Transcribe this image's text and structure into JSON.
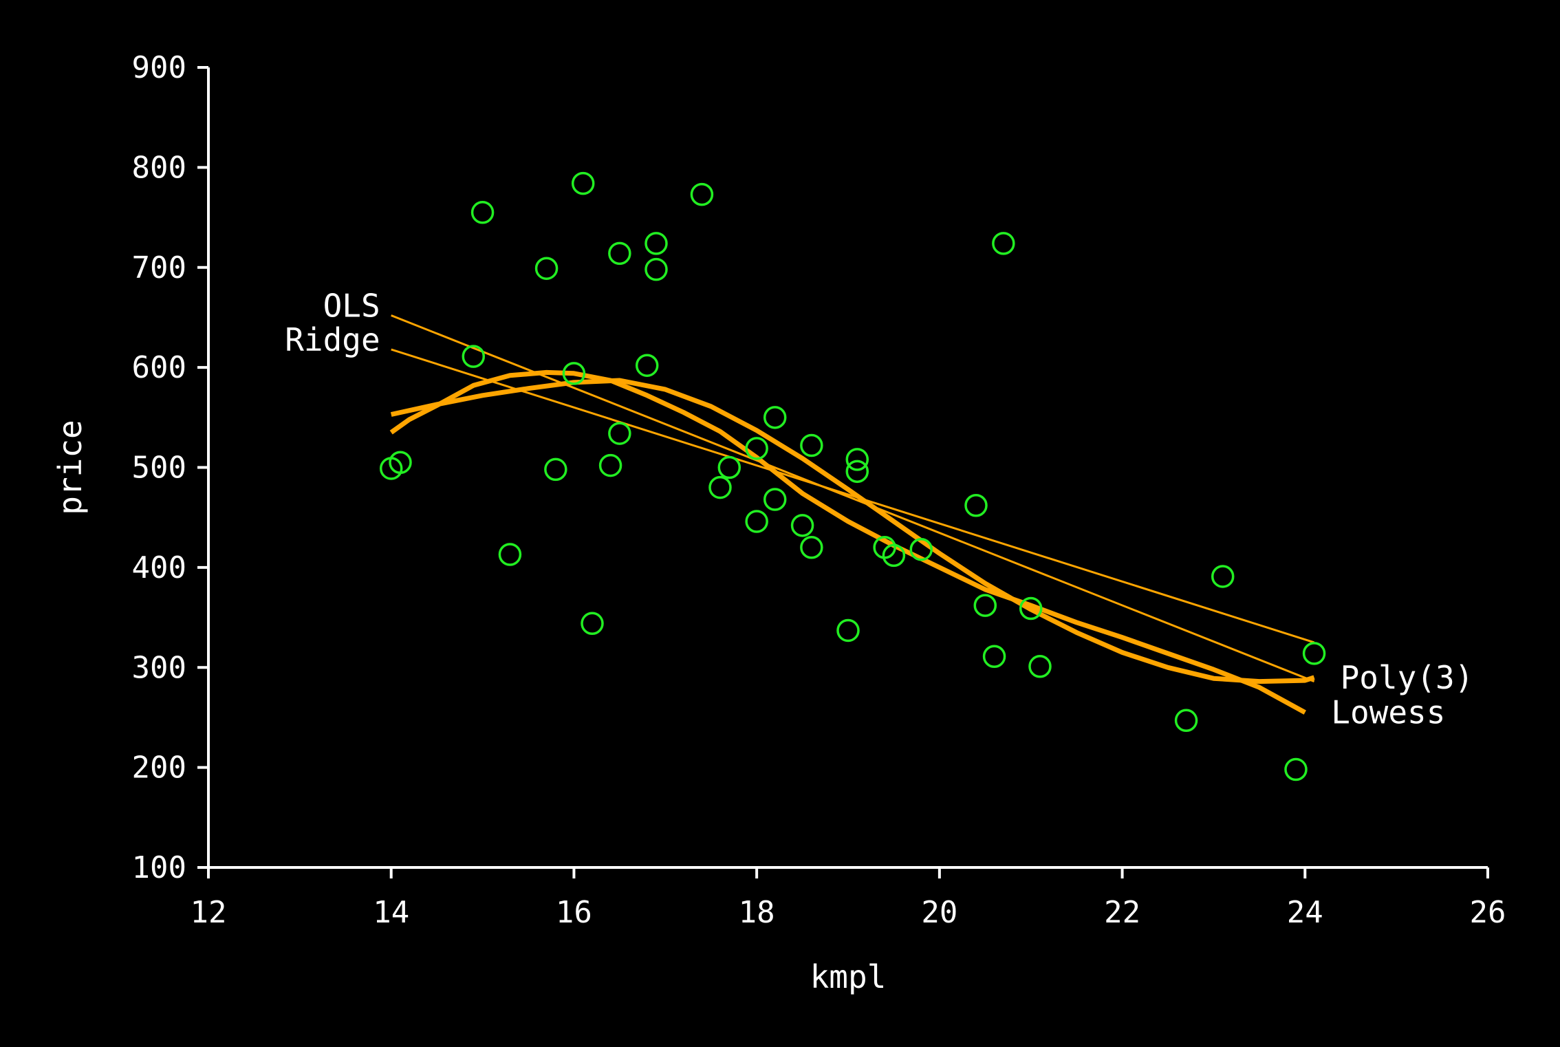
{
  "chart_data": {
    "type": "scatter",
    "title": "",
    "xlabel": "kmpl",
    "ylabel": "price",
    "xlim": [
      12,
      26
    ],
    "ylim": [
      100,
      900
    ],
    "xticks": [
      12,
      14,
      16,
      18,
      20,
      22,
      24,
      26
    ],
    "yticks": [
      100,
      200,
      300,
      400,
      500,
      600,
      700,
      800,
      900
    ],
    "grid": false,
    "colors": {
      "background": "#000000",
      "axes": "#ffffff",
      "points": "#22ee22",
      "fits": "#ffa500"
    },
    "points": [
      {
        "x": 14.0,
        "y": 499
      },
      {
        "x": 14.1,
        "y": 505
      },
      {
        "x": 14.9,
        "y": 611
      },
      {
        "x": 15.0,
        "y": 755
      },
      {
        "x": 15.3,
        "y": 413
      },
      {
        "x": 15.7,
        "y": 699
      },
      {
        "x": 15.8,
        "y": 498
      },
      {
        "x": 16.0,
        "y": 594
      },
      {
        "x": 16.1,
        "y": 784
      },
      {
        "x": 16.2,
        "y": 344
      },
      {
        "x": 16.4,
        "y": 502
      },
      {
        "x": 16.5,
        "y": 714
      },
      {
        "x": 16.5,
        "y": 534
      },
      {
        "x": 16.8,
        "y": 602
      },
      {
        "x": 16.9,
        "y": 724
      },
      {
        "x": 16.9,
        "y": 698
      },
      {
        "x": 17.4,
        "y": 773
      },
      {
        "x": 17.6,
        "y": 480
      },
      {
        "x": 17.7,
        "y": 500
      },
      {
        "x": 18.0,
        "y": 519
      },
      {
        "x": 18.0,
        "y": 446
      },
      {
        "x": 18.2,
        "y": 550
      },
      {
        "x": 18.2,
        "y": 468
      },
      {
        "x": 18.5,
        "y": 442
      },
      {
        "x": 18.6,
        "y": 522
      },
      {
        "x": 18.6,
        "y": 420
      },
      {
        "x": 19.0,
        "y": 337
      },
      {
        "x": 19.1,
        "y": 508
      },
      {
        "x": 19.1,
        "y": 496
      },
      {
        "x": 19.4,
        "y": 420
      },
      {
        "x": 19.5,
        "y": 412
      },
      {
        "x": 19.8,
        "y": 418
      },
      {
        "x": 20.4,
        "y": 462
      },
      {
        "x": 20.5,
        "y": 362
      },
      {
        "x": 20.6,
        "y": 311
      },
      {
        "x": 20.7,
        "y": 724
      },
      {
        "x": 21.0,
        "y": 359
      },
      {
        "x": 21.1,
        "y": 301
      },
      {
        "x": 22.7,
        "y": 247
      },
      {
        "x": 23.1,
        "y": 391
      },
      {
        "x": 23.9,
        "y": 198
      },
      {
        "x": 24.1,
        "y": 314
      }
    ],
    "series": [
      {
        "name": "OLS",
        "style": "thin",
        "label_side": "left",
        "x": [
          14.0,
          24.1
        ],
        "y": [
          652,
          286
        ]
      },
      {
        "name": "Ridge",
        "style": "thin",
        "label_side": "left",
        "x": [
          14.0,
          24.1
        ],
        "y": [
          618,
          325
        ]
      },
      {
        "name": "Poly(3)",
        "style": "thick",
        "label_side": "right",
        "x": [
          14.0,
          14.5,
          15.0,
          15.5,
          16.0,
          16.5,
          17.0,
          17.5,
          18.0,
          18.5,
          19.0,
          19.5,
          20.0,
          20.5,
          21.0,
          21.5,
          22.0,
          22.5,
          23.0,
          23.5,
          24.0,
          24.1
        ],
        "y": [
          553,
          563,
          572,
          579,
          585,
          587,
          578,
          561,
          537,
          509,
          478,
          446,
          414,
          384,
          358,
          335,
          315,
          300,
          289,
          286,
          287,
          290
        ]
      },
      {
        "name": "Lowess",
        "style": "thick",
        "label_side": "right",
        "x": [
          14.0,
          14.2,
          14.5,
          14.9,
          15.3,
          15.7,
          16.0,
          16.4,
          16.8,
          17.2,
          17.6,
          18.0,
          18.5,
          19.0,
          19.5,
          20.0,
          20.5,
          21.0,
          21.5,
          22.0,
          22.5,
          23.0,
          23.5,
          24.0
        ],
        "y": [
          535,
          548,
          562,
          582,
          592,
          595,
          594,
          587,
          572,
          555,
          536,
          510,
          474,
          446,
          422,
          400,
          378,
          362,
          345,
          330,
          314,
          298,
          280,
          255
        ]
      }
    ]
  }
}
